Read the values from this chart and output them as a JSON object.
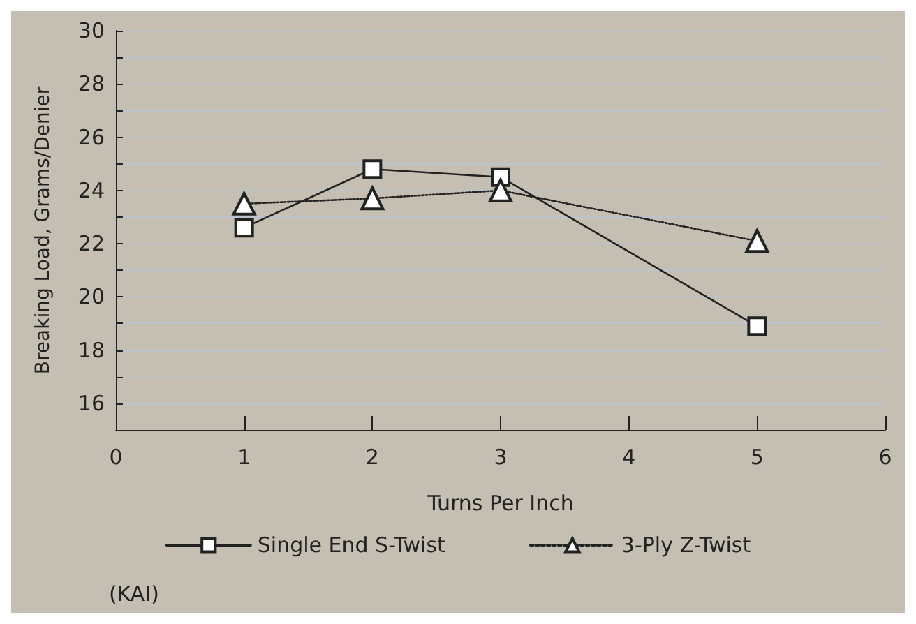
{
  "chart_data": {
    "type": "line",
    "xlabel": "Turns Per Inch",
    "ylabel": "Breaking Load, Grams/Denier",
    "annotations": [
      "(KAI)"
    ],
    "xlim": [
      0,
      6
    ],
    "xticks": [
      0,
      1,
      2,
      3,
      4,
      5,
      6
    ],
    "ylim": [
      15,
      30
    ],
    "yticks": [
      16,
      {
        "value": 17,
        "label": null
      },
      18,
      {
        "value": 19,
        "label": null
      },
      20,
      {
        "value": 21,
        "label": null
      },
      22,
      {
        "value": 23,
        "label": null
      },
      24,
      {
        "value": 25,
        "label": null
      },
      26,
      {
        "value": 27,
        "label": null
      },
      28,
      {
        "value": 29,
        "label": null
      },
      30
    ],
    "grid": "y",
    "legend": "bottom",
    "series": [
      {
        "name": "Single End S-Twist",
        "color": "#222222",
        "marker": "square",
        "line_style": "solid",
        "x": [
          1,
          2,
          3,
          5
        ],
        "values": [
          22.6,
          24.8,
          24.5,
          18.9
        ]
      },
      {
        "name": "3-Ply Z-Twist",
        "color": "#222222",
        "marker": "triangle",
        "line_style": "dotted",
        "x": [
          1,
          2,
          3,
          5
        ],
        "values": [
          23.5,
          23.7,
          24.0,
          22.1
        ]
      }
    ]
  }
}
